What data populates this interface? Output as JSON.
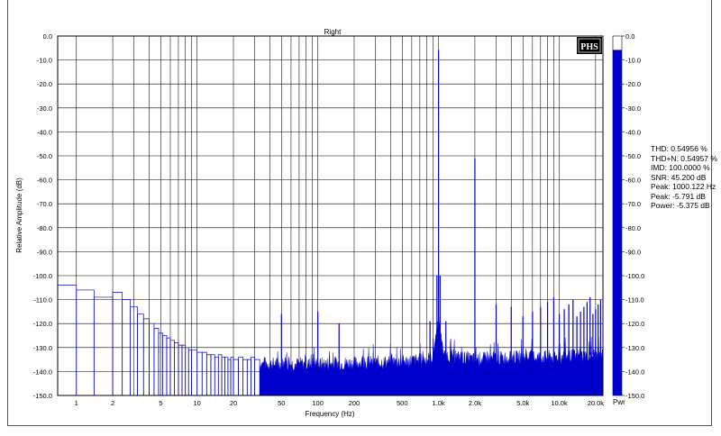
{
  "chart_data": {
    "type": "line",
    "title": "Right",
    "xlabel": "Frequency (Hz)",
    "ylabel": "Relative Amplitude (dB)",
    "x_scale": "log",
    "xlim": [
      0.7,
      23000
    ],
    "ylim": [
      -150,
      0
    ],
    "x_ticks": [
      {
        "v": 1,
        "label": "1"
      },
      {
        "v": 2,
        "label": "2"
      },
      {
        "v": 5,
        "label": "5"
      },
      {
        "v": 10,
        "label": "10"
      },
      {
        "v": 20,
        "label": "20"
      },
      {
        "v": 50,
        "label": "50"
      },
      {
        "v": 100,
        "label": "100"
      },
      {
        "v": 200,
        "label": "200"
      },
      {
        "v": 500,
        "label": "500"
      },
      {
        "v": 1000,
        "label": "1.0k"
      },
      {
        "v": 2000,
        "label": "2.0k"
      },
      {
        "v": 5000,
        "label": "5.0k"
      },
      {
        "v": 10000,
        "label": "10.0k"
      },
      {
        "v": 20000,
        "label": "20.0k"
      }
    ],
    "y_ticks": [
      "0.0",
      "-10.0",
      "-20.0",
      "-30.0",
      "-40.0",
      "-50.0",
      "-60.0",
      "-70.0",
      "-80.0",
      "-90.0",
      "-100.0",
      "-110.0",
      "-120.0",
      "-130.0",
      "-140.0",
      "-150.0"
    ],
    "grid": true,
    "series": [
      {
        "name": "",
        "color": "#0000cc",
        "low_freq_steps": {
          "x": [
            0.7,
            1,
            1.4,
            2,
            2.4,
            2.8,
            3.2,
            3.6,
            4.0,
            4.4,
            4.8,
            5.2,
            5.6,
            6.0,
            6.5,
            7,
            7.5,
            8,
            8.5,
            9,
            10,
            11,
            12,
            13,
            14,
            15,
            16,
            17,
            18,
            19,
            20,
            22,
            24,
            26,
            28,
            30,
            33
          ],
          "y": [
            -104,
            -106,
            -109,
            -107,
            -110,
            -113,
            -116,
            -118,
            -120,
            -122,
            -124,
            -125,
            -126,
            -127,
            -128,
            -129,
            -129,
            -130,
            -131,
            -131,
            -132,
            -132,
            -133,
            -133,
            -134,
            -133,
            -134,
            -134,
            -135,
            -134,
            -135,
            -134,
            -135,
            -135,
            -134,
            -135,
            -134
          ]
        },
        "noise_floor": {
          "x": [
            33,
            100,
            500,
            800,
            1000,
            2000,
            5000,
            10000,
            20000,
            23000
          ],
          "y": [
            -137,
            -137,
            -136,
            -135,
            -133,
            -135,
            -134,
            -134,
            -133,
            -133
          ]
        },
        "peaks": [
          {
            "x": 1000.122,
            "y": -5.8
          },
          {
            "x": 2000,
            "y": -51
          },
          {
            "x": 3000,
            "y": -112
          },
          {
            "x": 4000,
            "y": -113
          },
          {
            "x": 5000,
            "y": -117
          },
          {
            "x": 50,
            "y": -116
          },
          {
            "x": 100,
            "y": -115
          },
          {
            "x": 150,
            "y": -120
          },
          {
            "x": 850,
            "y": -119
          },
          {
            "x": 1150,
            "y": -119
          },
          {
            "x": 970,
            "y": -100
          },
          {
            "x": 1030,
            "y": -100
          }
        ]
      }
    ],
    "scale_bar": {
      "label": "Pwr",
      "min": -150,
      "max": 0,
      "level": -5.791,
      "ticks": [
        "0.0",
        "-10.0",
        "-20.0",
        "-30.0",
        "-40.0",
        "-50.0",
        "-60.0",
        "-70.0",
        "-80.0",
        "-90.0",
        "-100.0",
        "-110.0",
        "-120.0",
        "-130.0",
        "-140.0",
        "-150.0"
      ]
    }
  },
  "logo": "PHS",
  "stats": {
    "thd": "THD: 0.54956 %",
    "thdn": "THD+N: 0.54957 %",
    "imd": "IMD: 100.0000 %",
    "snr": "SNR: 45.200 dB",
    "peak_freq": "Peak: 1000.122 Hz",
    "peak_level": "Peak: -5.791 dB",
    "power": "Power: -5.375 dB"
  }
}
